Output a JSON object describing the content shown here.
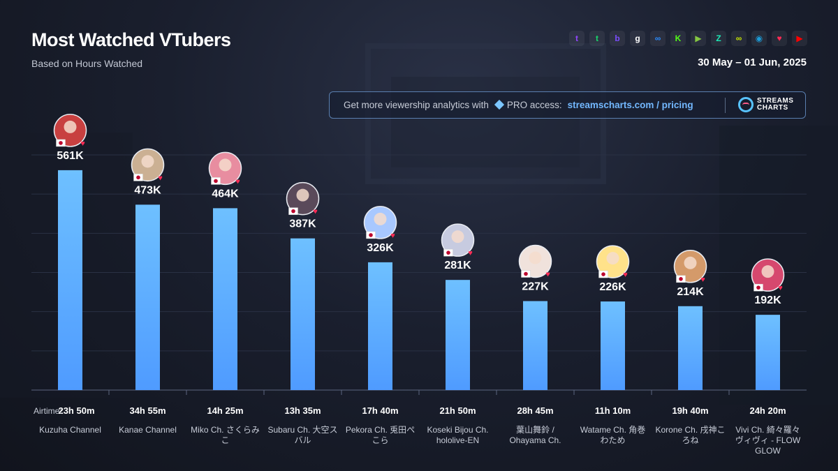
{
  "header": {
    "title": "Most Watched VTubers",
    "subtitle": "Based on Hours Watched",
    "date_range": "30 May – 01 Jun, 2025"
  },
  "platforms": [
    {
      "name": "twitch-icon",
      "glyph": "t",
      "color": "#9146ff"
    },
    {
      "name": "trovo-icon",
      "glyph": "t",
      "color": "#19d66b"
    },
    {
      "name": "bilibili-icon",
      "glyph": "b",
      "color": "#7b4dff"
    },
    {
      "name": "ghost-icon",
      "glyph": "g",
      "color": "#ffffff"
    },
    {
      "name": "infinity-icon",
      "glyph": "∞",
      "color": "#2a8cff"
    },
    {
      "name": "kick-icon",
      "glyph": "K",
      "color": "#53fc18"
    },
    {
      "name": "rumble-icon",
      "glyph": "▶",
      "color": "#85c742"
    },
    {
      "name": "zhanqi-icon",
      "glyph": "Z",
      "color": "#1de9b6"
    },
    {
      "name": "loop-icon",
      "glyph": "∞",
      "color": "#c6e600"
    },
    {
      "name": "steam-icon",
      "glyph": "◉",
      "color": "#1b9cd8"
    },
    {
      "name": "heart-icon",
      "glyph": "♥",
      "color": "#ff2b55"
    },
    {
      "name": "youtube-icon",
      "glyph": "▶",
      "color": "#ff0000"
    }
  ],
  "promo": {
    "text": "Get more viewership analytics with",
    "pro_label": "PRO access:",
    "link": "streamscharts.com / pricing",
    "brand_line1": "STREAMS",
    "brand_line2": "CHARTS"
  },
  "airtime_label": "Airtime:",
  "colors": {
    "bar_top": "#6ec0ff",
    "bar_bottom": "#4f9bff",
    "flag_red": "#bc002d"
  },
  "chart_data": {
    "type": "bar",
    "title": "Most Watched VTubers",
    "subtitle": "Based on Hours Watched",
    "categories": [
      "Kuzuha Channel",
      "Kanae Channel",
      "Miko Ch. さくらみこ",
      "Subaru Ch. 大空スバル",
      "Pekora Ch. 兎田ぺこら",
      "Koseki Bijou Ch. hololive-EN",
      "葉山舞鈴 / Ohayama Ch.",
      "Watame Ch. 角巻わため",
      "Korone Ch. 戌神ころね",
      "Vivi Ch. 綺々羅々ヴィヴィ - FLOW GLOW"
    ],
    "category_lines": [
      [
        "Kuzuha Channel"
      ],
      [
        "Kanae Channel"
      ],
      [
        "Miko Ch. さくらみ",
        "こ"
      ],
      [
        "Subaru Ch. 大空ス",
        "バル"
      ],
      [
        "Pekora Ch. 兎田ぺ",
        "こら"
      ],
      [
        "Koseki Bijou Ch.",
        "hololive-EN"
      ],
      [
        "葉山舞鈴 /",
        "Ohayama Ch."
      ],
      [
        "Watame Ch. 角巻",
        "わため"
      ],
      [
        "Korone Ch. 戌神こ",
        "ろね"
      ],
      [
        "Vivi Ch. 綺々羅々",
        "ヴィヴィ - FLOW",
        "GLOW"
      ]
    ],
    "values": [
      561000,
      473000,
      464000,
      387000,
      326000,
      281000,
      227000,
      226000,
      214000,
      192000
    ],
    "value_labels": [
      "561K",
      "473K",
      "464K",
      "387K",
      "326K",
      "281K",
      "227K",
      "226K",
      "214K",
      "192K"
    ],
    "airtime": [
      "23h 50m",
      "34h 55m",
      "14h 25m",
      "13h 35m",
      "17h 40m",
      "21h 50m",
      "28h 45m",
      "11h 10m",
      "19h 40m",
      "24h 20m"
    ],
    "avatar_colors": [
      "#c84040",
      "#cbb093",
      "#e88da0",
      "#5a4a5a",
      "#a8c8ff",
      "#c7cbe0",
      "#f0e2dc",
      "#ffe28a",
      "#d49a6a",
      "#d6486e"
    ],
    "ylim": [
      0,
      600000
    ],
    "grid": true,
    "legend": "none"
  }
}
